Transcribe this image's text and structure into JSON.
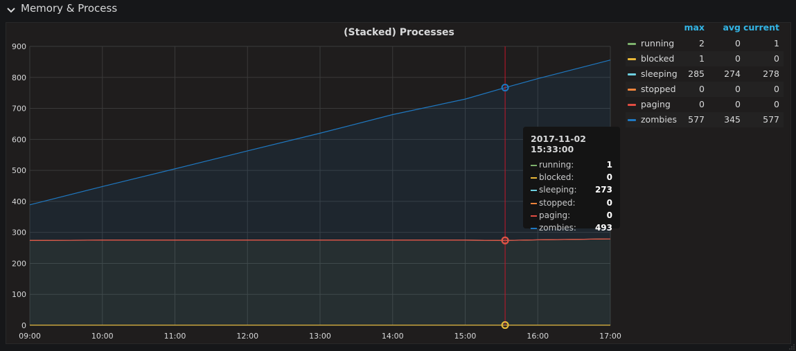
{
  "row": {
    "title": "Memory & Process",
    "chevron_icon": "chevron-down-icon"
  },
  "panel": {
    "title": "(Stacked) Processes"
  },
  "legend": {
    "headers": {
      "max": "max",
      "avg": "avg",
      "current": "current"
    },
    "items": [
      {
        "name": "running",
        "color": "#7eb26d",
        "max": "2",
        "avg": "0",
        "current": "1"
      },
      {
        "name": "blocked",
        "color": "#eab839",
        "max": "1",
        "avg": "0",
        "current": "0"
      },
      {
        "name": "sleeping",
        "color": "#6ed0e0",
        "max": "285",
        "avg": "274",
        "current": "278"
      },
      {
        "name": "stopped",
        "color": "#ef843c",
        "max": "0",
        "avg": "0",
        "current": "0"
      },
      {
        "name": "paging",
        "color": "#e24d42",
        "max": "0",
        "avg": "0",
        "current": "0"
      },
      {
        "name": "zombies",
        "color": "#1f78c1",
        "max": "577",
        "avg": "345",
        "current": "577"
      }
    ]
  },
  "tooltip": {
    "time": "2017-11-02 15:33:00",
    "rows": [
      {
        "name": "running:",
        "value": "1",
        "color": "#7eb26d"
      },
      {
        "name": "blocked:",
        "value": "0",
        "color": "#eab839"
      },
      {
        "name": "sleeping:",
        "value": "273",
        "color": "#6ed0e0"
      },
      {
        "name": "stopped:",
        "value": "0",
        "color": "#ef843c"
      },
      {
        "name": "paging:",
        "value": "0",
        "color": "#e24d42"
      },
      {
        "name": "zombies:",
        "value": "493",
        "color": "#1f78c1"
      }
    ]
  },
  "chart_data": {
    "type": "area",
    "stacked": true,
    "title": "(Stacked) Processes",
    "xlabel": "",
    "ylabel": "",
    "x_ticks": [
      "09:00",
      "10:00",
      "11:00",
      "12:00",
      "13:00",
      "14:00",
      "15:00",
      "16:00",
      "17:00"
    ],
    "y_ticks": [
      "0",
      "100",
      "200",
      "300",
      "400",
      "500",
      "600",
      "700",
      "800",
      "900"
    ],
    "ylim": [
      0,
      900
    ],
    "xlim": [
      "09:00",
      "17:00"
    ],
    "grid": true,
    "legend_position": "right",
    "x": [
      "09:00",
      "10:00",
      "11:00",
      "12:00",
      "13:00",
      "14:00",
      "15:00",
      "15:33",
      "16:00",
      "17:00"
    ],
    "series": [
      {
        "name": "running",
        "color": "#7eb26d",
        "values": [
          1,
          1,
          1,
          1,
          1,
          1,
          1,
          1,
          1,
          1
        ]
      },
      {
        "name": "blocked",
        "color": "#eab839",
        "values": [
          0,
          0,
          0,
          0,
          0,
          0,
          0,
          0,
          0,
          0
        ]
      },
      {
        "name": "sleeping",
        "color": "#6ed0e0",
        "values": [
          273,
          274,
          274,
          274,
          274,
          274,
          274,
          273,
          275,
          278
        ]
      },
      {
        "name": "stopped",
        "color": "#ef843c",
        "values": [
          0,
          0,
          0,
          0,
          0,
          0,
          0,
          0,
          0,
          0
        ]
      },
      {
        "name": "paging",
        "color": "#e24d42",
        "values": [
          0,
          0,
          0,
          0,
          0,
          0,
          0,
          0,
          0,
          0
        ]
      },
      {
        "name": "zombies",
        "color": "#1f78c1",
        "values": [
          115,
          173,
          230,
          288,
          345,
          405,
          455,
          493,
          520,
          577
        ]
      }
    ],
    "crosshair_x": "15:33"
  }
}
